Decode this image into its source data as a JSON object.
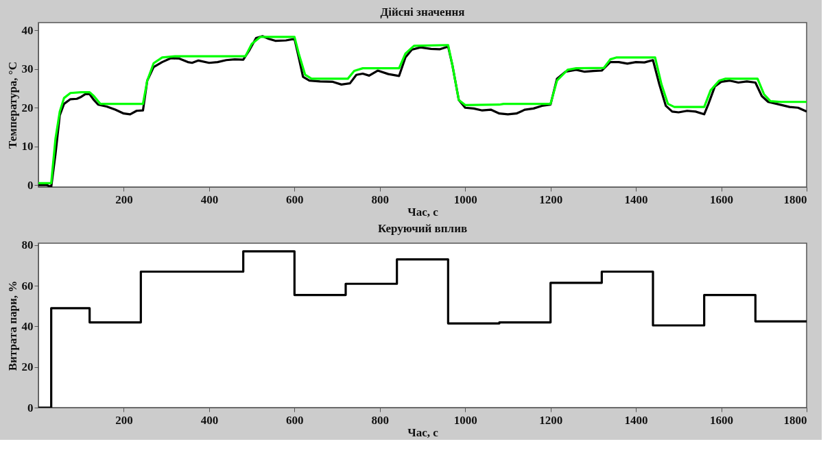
{
  "chart_data": [
    {
      "type": "line",
      "title": "Дійсні значення",
      "xlabel": "Час, с",
      "ylabel": "Температура, °C",
      "xlim": [
        0,
        1800
      ],
      "xticks": [
        200,
        400,
        600,
        800,
        1000,
        1200,
        1400,
        1600,
        1800
      ],
      "ylim": [
        -0.5,
        42
      ],
      "yticks": [
        0,
        10,
        20,
        30,
        40
      ],
      "grid": false,
      "legend": false,
      "marker": "none",
      "line_style": "solid",
      "series": [
        {
          "color": "#000000",
          "x": [
            0,
            20,
            30,
            40,
            50,
            60,
            75,
            90,
            100,
            110,
            120,
            130,
            140,
            160,
            180,
            200,
            215,
            230,
            245,
            255,
            270,
            290,
            310,
            330,
            350,
            360,
            375,
            400,
            420,
            440,
            460,
            480,
            495,
            510,
            525,
            540,
            555,
            580,
            600,
            610,
            620,
            635,
            660,
            690,
            710,
            730,
            745,
            760,
            775,
            795,
            820,
            845,
            860,
            875,
            895,
            920,
            940,
            960,
            970,
            985,
            1000,
            1020,
            1040,
            1060,
            1080,
            1100,
            1120,
            1140,
            1160,
            1180,
            1200,
            1215,
            1235,
            1260,
            1280,
            1300,
            1320,
            1340,
            1360,
            1380,
            1400,
            1420,
            1440,
            1455,
            1470,
            1485,
            1500,
            1520,
            1540,
            1560,
            1570,
            1585,
            1600,
            1620,
            1640,
            1660,
            1680,
            1695,
            1710,
            1730,
            1760,
            1780,
            1800
          ],
          "values": [
            0,
            0,
            -0.5,
            8,
            18,
            21,
            22.2,
            22.3,
            22.8,
            23.5,
            23.5,
            22,
            20.8,
            20.3,
            19.5,
            18.5,
            18.3,
            19.2,
            19.3,
            27,
            30.5,
            31.8,
            32.8,
            32.7,
            31.8,
            31.6,
            32.2,
            31.6,
            31.8,
            32.3,
            32.5,
            32.4,
            35,
            38,
            38.5,
            37.8,
            37.3,
            37.4,
            37.8,
            33,
            28,
            27,
            26.8,
            26.7,
            26,
            26.3,
            28.5,
            28.8,
            28.3,
            29.6,
            28.7,
            28.2,
            33,
            35,
            35.6,
            35.2,
            35.1,
            35.8,
            31,
            22,
            20,
            19.8,
            19.3,
            19.5,
            18.5,
            18.3,
            18.5,
            19.5,
            19.8,
            20.5,
            20.8,
            27.5,
            29.3,
            29.8,
            29.3,
            29.5,
            29.6,
            31.8,
            31.8,
            31.4,
            31.8,
            31.7,
            32.3,
            26,
            20.5,
            19,
            18.8,
            19.2,
            19,
            18.3,
            21,
            25.5,
            26.7,
            27,
            26.5,
            26.8,
            26.5,
            23,
            21.5,
            21,
            20.2,
            20,
            19
          ]
        },
        {
          "color": "#00ff00",
          "x": [
            0,
            30,
            40,
            50,
            60,
            75,
            100,
            120,
            130,
            145,
            245,
            255,
            270,
            290,
            320,
            485,
            500,
            520,
            600,
            610,
            625,
            640,
            725,
            740,
            760,
            845,
            860,
            880,
            960,
            970,
            985,
            1000,
            1080,
            1090,
            1200,
            1215,
            1240,
            1260,
            1325,
            1340,
            1355,
            1445,
            1460,
            1475,
            1490,
            1560,
            1575,
            1595,
            1610,
            1685,
            1700,
            1715,
            1740,
            1800
          ],
          "values": [
            0.5,
            0.5,
            12,
            19,
            22.5,
            23.8,
            24,
            24,
            23,
            21,
            21,
            27,
            31.5,
            33,
            33.3,
            33.3,
            36.5,
            38.3,
            38.3,
            34,
            28.5,
            27.5,
            27.5,
            29.5,
            30.2,
            30.2,
            34,
            36,
            36.2,
            31,
            22,
            20.7,
            20.8,
            21,
            21,
            27,
            29.8,
            30.2,
            30.3,
            32.5,
            33,
            33,
            26,
            21,
            20.2,
            20.2,
            24.5,
            27,
            27.5,
            27.5,
            23.5,
            21.7,
            21.5,
            21.5
          ]
        }
      ]
    },
    {
      "type": "step",
      "title": "Керуючий вплив",
      "xlabel": "Час, с",
      "ylabel": "Витрата пари, %",
      "xlim": [
        0,
        1800
      ],
      "xticks": [
        200,
        400,
        600,
        800,
        1000,
        1200,
        1400,
        1600,
        1800
      ],
      "ylim": [
        0,
        81
      ],
      "yticks": [
        0,
        20,
        40,
        60,
        80
      ],
      "grid": false,
      "legend": false,
      "marker": "none",
      "line_style": "solid",
      "series": [
        {
          "color": "#000000",
          "x": [
            0,
            30,
            120,
            240,
            480,
            600,
            720,
            840,
            960,
            1080,
            1200,
            1320,
            1440,
            1560,
            1680,
            1800
          ],
          "values": [
            0,
            49,
            42,
            67,
            77,
            55.5,
            61,
            73,
            41.5,
            42,
            61.5,
            67,
            40.5,
            55.5,
            42.5,
            42.5
          ]
        }
      ]
    }
  ]
}
